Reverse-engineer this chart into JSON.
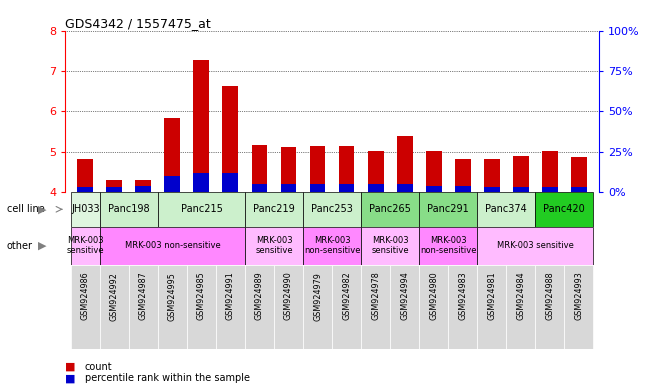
{
  "title": "GDS4342 / 1557475_at",
  "gsm_labels": [
    "GSM924986",
    "GSM924992",
    "GSM924987",
    "GSM924995",
    "GSM924985",
    "GSM924991",
    "GSM924989",
    "GSM924990",
    "GSM924979",
    "GSM924982",
    "GSM924978",
    "GSM924994",
    "GSM924980",
    "GSM924983",
    "GSM924981",
    "GSM924984",
    "GSM924988",
    "GSM924993"
  ],
  "count_values": [
    4.82,
    4.31,
    4.29,
    5.84,
    7.27,
    6.63,
    5.17,
    5.11,
    5.13,
    5.14,
    5.02,
    5.38,
    5.01,
    4.82,
    4.82,
    4.89,
    5.02,
    4.87
  ],
  "percentile_values": [
    3,
    3,
    4,
    10,
    12,
    12,
    5,
    5,
    5,
    5,
    5,
    5,
    4,
    4,
    3,
    3,
    3,
    3
  ],
  "y_min": 4.0,
  "y_max": 8.0,
  "y_ticks_red": [
    4,
    5,
    6,
    7,
    8
  ],
  "y_ticks_blue": [
    0,
    25,
    50,
    75,
    100
  ],
  "cell_lines": [
    {
      "name": "JH033",
      "start": 0,
      "end": 1,
      "color": "#dff5df"
    },
    {
      "name": "Panc198",
      "start": 1,
      "end": 3,
      "color": "#ccf0cc"
    },
    {
      "name": "Panc215",
      "start": 3,
      "end": 6,
      "color": "#ccf0cc"
    },
    {
      "name": "Panc219",
      "start": 6,
      "end": 8,
      "color": "#ccf0cc"
    },
    {
      "name": "Panc253",
      "start": 8,
      "end": 10,
      "color": "#ccf0cc"
    },
    {
      "name": "Panc265",
      "start": 10,
      "end": 12,
      "color": "#88dd88"
    },
    {
      "name": "Panc291",
      "start": 12,
      "end": 14,
      "color": "#88dd88"
    },
    {
      "name": "Panc374",
      "start": 14,
      "end": 16,
      "color": "#ccf0cc"
    },
    {
      "name": "Panc420",
      "start": 16,
      "end": 18,
      "color": "#22cc22"
    }
  ],
  "other_labels": [
    {
      "text": "MRK-003\nsensitive",
      "start": 0,
      "end": 1,
      "color": "#ffbbff"
    },
    {
      "text": "MRK-003 non-sensitive",
      "start": 1,
      "end": 6,
      "color": "#ff88ff"
    },
    {
      "text": "MRK-003\nsensitive",
      "start": 6,
      "end": 8,
      "color": "#ffbbff"
    },
    {
      "text": "MRK-003\nnon-sensitive",
      "start": 8,
      "end": 10,
      "color": "#ff88ff"
    },
    {
      "text": "MRK-003\nsensitive",
      "start": 10,
      "end": 12,
      "color": "#ffbbff"
    },
    {
      "text": "MRK-003\nnon-sensitive",
      "start": 12,
      "end": 14,
      "color": "#ff88ff"
    },
    {
      "text": "MRK-003 sensitive",
      "start": 14,
      "end": 18,
      "color": "#ffbbff"
    }
  ],
  "bar_color_red": "#cc0000",
  "bar_color_blue": "#0000cc",
  "bar_width": 0.55,
  "gsm_bg_color": "#d8d8d8"
}
